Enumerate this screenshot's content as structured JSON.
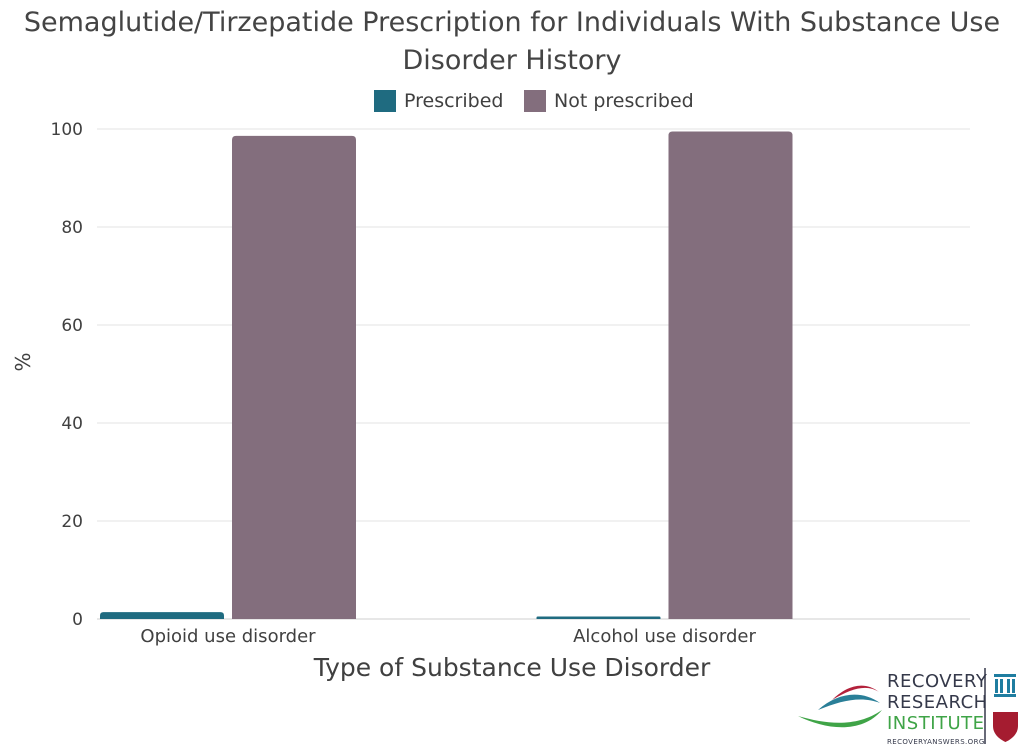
{
  "chart_data": {
    "type": "bar",
    "title_line1": "Semaglutide/Tirzepatide Prescription for Individuals With Substance Use",
    "title_line2": "Disorder History",
    "xlabel": "Type of Substance Use Disorder",
    "ylabel": "%",
    "categories": [
      "Opioid use disorder",
      "Alcohol use disorder"
    ],
    "series": [
      {
        "name": "Prescribed",
        "color": "#1f6b80",
        "values": [
          1.4,
          0.5
        ]
      },
      {
        "name": "Not prescribed",
        "color": "#836e7d",
        "values": [
          98.6,
          99.5
        ]
      }
    ],
    "ylim": [
      0,
      100
    ],
    "yticks": [
      0,
      20,
      40,
      60,
      80,
      100
    ],
    "grid": true,
    "legend_position": "top-center"
  },
  "logo": {
    "line1": "RECOVERY",
    "line2": "RESEARCH",
    "line3": "INSTITUTE",
    "url": "RECOVERYANSWERS.ORG",
    "wave_colors": [
      "#b3213b",
      "#2a7f98",
      "#3fa447"
    ],
    "emblem_color": "#1f7da0",
    "shield_color": "#a51c30"
  }
}
